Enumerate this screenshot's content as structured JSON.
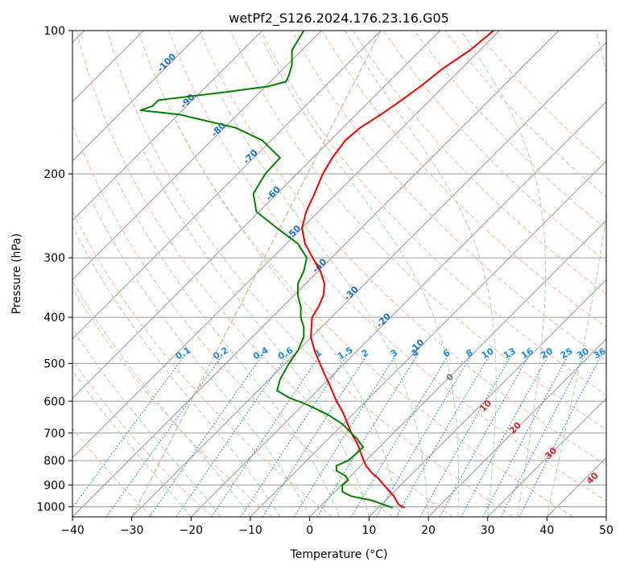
{
  "chart_data": {
    "type": "line",
    "title": "wetPf2_S126.2024.176.23.16.G05",
    "xlabel": "Temperature (°C)",
    "ylabel": "Pressure (hPa)",
    "xlim": [
      -40,
      50
    ],
    "ylim": [
      1050,
      100
    ],
    "y_scale": "log",
    "x_ticks": [
      -40,
      -30,
      -20,
      -10,
      0,
      10,
      20,
      30,
      40,
      50
    ],
    "y_ticks": [
      100,
      200,
      300,
      400,
      500,
      600,
      700,
      800,
      900,
      1000
    ],
    "grid": true,
    "colors": {
      "temperature": "#ee0000",
      "dewpoint": "#008000",
      "isotherm": "#999999",
      "dry_adiabat": "#ffb49c",
      "moist_adiabat": "#a6d8a6",
      "mixing_ratio": "#1e88e5",
      "lcl_curve": "#d9bfa3",
      "theta_e_label": "#d62728",
      "isotherm_label": "#1f6fbf"
    },
    "series": [
      {
        "key": "temperature",
        "p": [
          1005,
          990,
          970,
          950,
          930,
          900,
          870,
          850,
          820,
          800,
          770,
          740,
          700,
          660,
          630,
          600,
          560,
          520,
          500,
          470,
          440,
          400,
          380,
          360,
          340,
          320,
          300,
          280,
          260,
          240,
          220,
          200,
          185,
          170,
          160,
          150,
          140,
          130,
          120,
          110,
          100
        ],
        "t": [
          16,
          15,
          14.6,
          14.2,
          13.5,
          12.5,
          11.5,
          10.5,
          9.5,
          9.1,
          8.6,
          8.1,
          7,
          6.2,
          5.5,
          4.5,
          3.5,
          2.3,
          1.7,
          0.8,
          0.2,
          0.4,
          1.5,
          2.3,
          2.5,
          1.8,
          0.5,
          -0.8,
          -1.3,
          -0.6,
          0.8,
          2.2,
          3.8,
          6,
          8.5,
          12,
          15.5,
          19,
          22.5,
          27,
          31
        ]
      },
      {
        "key": "dewpoint",
        "p": [
          1005,
          990,
          970,
          950,
          930,
          900,
          880,
          860,
          840,
          820,
          800,
          780,
          750,
          720,
          700,
          670,
          640,
          610,
          590,
          570,
          540,
          500,
          470,
          440,
          420,
          400,
          380,
          360,
          340,
          320,
          300,
          280,
          260,
          240,
          220,
          200,
          185,
          170,
          160,
          150,
          147,
          144,
          140,
          135,
          131,
          128,
          124,
          118,
          110,
          100
        ],
        "t": [
          14,
          12.5,
          10.5,
          7,
          5.5,
          5.5,
          6.5,
          6,
          4.5,
          4.5,
          6.5,
          7.5,
          9,
          8,
          7,
          5.5,
          3,
          -0.5,
          -3.5,
          -5.5,
          -5,
          -3.5,
          -2,
          -1,
          -1,
          -1.5,
          -1.5,
          -2,
          -2,
          -1,
          -0.5,
          -2,
          -5.5,
          -9,
          -9.5,
          -7.5,
          -5,
          -8,
          -12.5,
          -22,
          -28.5,
          -26.5,
          -25.5,
          -15,
          -7,
          -4,
          -3.5,
          -3,
          -3,
          -1
        ]
      }
    ],
    "annotations": {
      "isotherm_labels": [
        -100,
        -90,
        -80,
        -70,
        -60,
        -50,
        -40,
        -30,
        -20,
        -10
      ],
      "mixing_ratio_labels": [
        "0.1",
        "0.2",
        "0.4",
        "0.6",
        "1",
        "1.5",
        "2",
        "3",
        "4",
        "6",
        "8",
        "10",
        "13",
        "16",
        "20",
        "25",
        "30",
        "36"
      ],
      "theta_e_labels": [
        "0",
        "10",
        "20",
        "30",
        "40"
      ]
    }
  }
}
